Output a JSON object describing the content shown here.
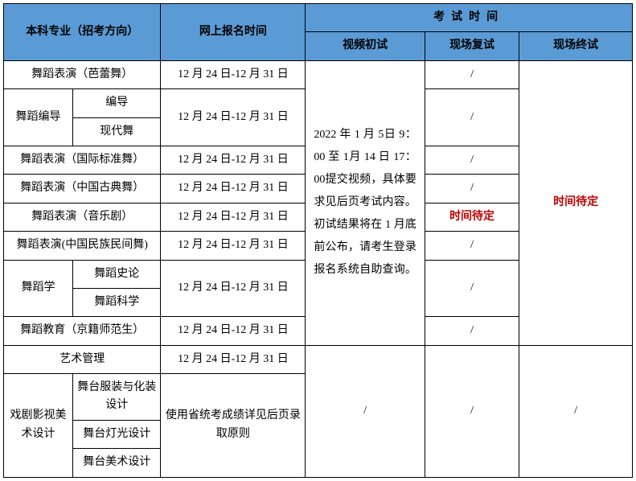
{
  "headers": {
    "major": "本科专业（招考方向）",
    "registration": "网上报名时间",
    "examTime": "考试时间",
    "videoPrelim": "视频初试",
    "onsiteRexam": "现场复试",
    "onsiteFinal": "现场终试"
  },
  "regDate": "12 月 24 日-12 月 31 日",
  "videoText": "2022 年 1 月 5日 9：00 至 1月 14 日 17：00提交视频，具体要求见后页考试内容。初试结果将在 1 月底前公布，请考生登录报名系统自助查询。",
  "timeTBD": "时间待定",
  "slash": "/",
  "majors": {
    "r1": "舞蹈表演（芭蕾舞）",
    "r2a": "舞蹈编导",
    "r2b1": "编导",
    "r2b2": "现代舞",
    "r3": "舞蹈表演（国际标准舞）",
    "r4": "舞蹈表演（中国古典舞）",
    "r5": "舞蹈表演（音乐剧）",
    "r6": "舞蹈表演(中国民族民间舞)",
    "r7a": "舞蹈学",
    "r7b1": "舞蹈史论",
    "r7b2": "舞蹈科学",
    "r8": "舞蹈教育（京籍师范生）",
    "r9": "艺术管理",
    "r10a": "戏剧影视美术设计",
    "r10b1": "舞台服装与化装设计",
    "r10b2": "舞台灯光设计",
    "r10b3": "舞台美术设计"
  },
  "provincialExam": "使用省统考成绩详见后页录取原则",
  "colors": {
    "headerBg": "#5b9bd5",
    "border": "#000000",
    "redText": "#c00000"
  }
}
